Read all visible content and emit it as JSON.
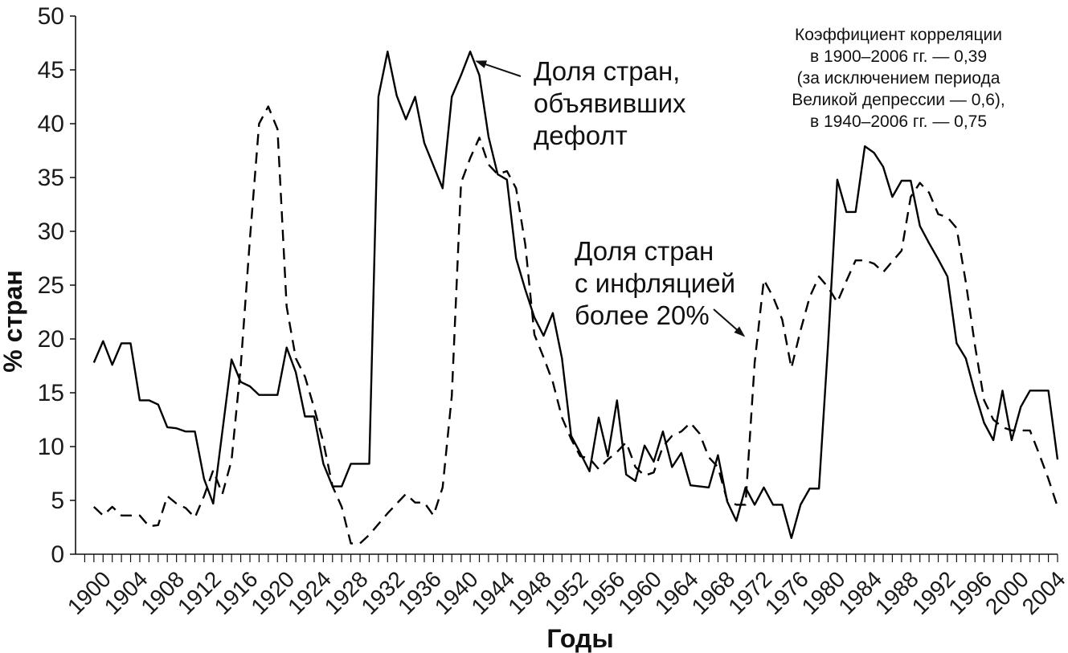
{
  "chart_data": {
    "type": "line",
    "title": "",
    "xlabel": "Годы",
    "ylabel": "% стран",
    "xlim": [
      1898,
      2005
    ],
    "ylim": [
      0,
      50
    ],
    "yticks": [
      0,
      5,
      10,
      15,
      20,
      25,
      30,
      35,
      40,
      45,
      50
    ],
    "xtick_labels": [
      "1900",
      "1904",
      "1908",
      "1912",
      "1916",
      "1920",
      "1924",
      "1928",
      "1932",
      "1936",
      "1940",
      "1944",
      "1948",
      "1952",
      "1956",
      "1960",
      "1964",
      "1968",
      "1972",
      "1976",
      "1980",
      "1984",
      "1988",
      "1992",
      "1996",
      "2000",
      "2004"
    ],
    "grid": false,
    "series": [
      {
        "name": "Доля стран, объявивших дефолт",
        "style": "solid",
        "color": "#000000",
        "x": [
          1900,
          1901,
          1902,
          1903,
          1904,
          1905,
          1906,
          1907,
          1908,
          1909,
          1910,
          1911,
          1912,
          1913,
          1914,
          1915,
          1916,
          1917,
          1918,
          1919,
          1920,
          1921,
          1922,
          1923,
          1924,
          1925,
          1926,
          1927,
          1928,
          1929,
          1930,
          1931,
          1932,
          1933,
          1934,
          1935,
          1936,
          1937,
          1938,
          1939,
          1940,
          1941,
          1942,
          1943,
          1944,
          1945,
          1946,
          1947,
          1948,
          1949,
          1950,
          1951,
          1952,
          1953,
          1954,
          1955,
          1956,
          1957,
          1958,
          1959,
          1960,
          1961,
          1962,
          1963,
          1964,
          1965,
          1966,
          1967,
          1968,
          1969,
          1970,
          1971,
          1972,
          1973,
          1974,
          1975,
          1976,
          1977,
          1978,
          1979,
          1980,
          1981,
          1982,
          1983,
          1984,
          1985,
          1986,
          1987,
          1988,
          1989,
          1990,
          1991,
          1992,
          1993,
          1994,
          1995,
          1996,
          1997,
          1998,
          1999,
          2000,
          2001,
          2002,
          2003,
          2004,
          2005
        ],
        "y": [
          17.8,
          19.8,
          17.6,
          19.6,
          19.6,
          14.3,
          14.3,
          13.9,
          11.8,
          11.7,
          11.4,
          11.4,
          7.0,
          4.7,
          11.4,
          18.1,
          16.0,
          15.6,
          14.8,
          14.8,
          14.8,
          19.2,
          16.9,
          12.8,
          12.8,
          8.4,
          6.3,
          6.3,
          8.4,
          8.4,
          8.4,
          42.5,
          46.7,
          42.6,
          40.4,
          42.5,
          38.2,
          36.1,
          34.0,
          42.5,
          44.5,
          46.7,
          44.5,
          38.8,
          35.3,
          34.8,
          27.5,
          24.6,
          22.0,
          20.3,
          22.4,
          18.2,
          11.0,
          9.4,
          7.7,
          12.7,
          9.1,
          14.3,
          7.4,
          6.8,
          10.1,
          8.6,
          11.4,
          8.1,
          9.4,
          6.4,
          6.3,
          6.2,
          9.2,
          4.9,
          3.1,
          6.2,
          4.6,
          6.2,
          4.6,
          4.6,
          1.5,
          4.6,
          6.1,
          6.1,
          19.6,
          34.8,
          31.8,
          31.8,
          37.9,
          37.3,
          36.0,
          33.2,
          34.7,
          34.7,
          30.5,
          28.9,
          27.4,
          25.8,
          19.6,
          18.2,
          15.0,
          12.2,
          10.6,
          15.2,
          10.6,
          13.7,
          15.2,
          15.2,
          15.2,
          8.8
        ]
      },
      {
        "name": "Доля стран с инфляцией более 20%",
        "style": "dashed",
        "color": "#000000",
        "x": [
          1900,
          1901,
          1902,
          1903,
          1904,
          1905,
          1906,
          1907,
          1908,
          1909,
          1910,
          1911,
          1912,
          1913,
          1914,
          1915,
          1916,
          1917,
          1918,
          1919,
          1920,
          1921,
          1922,
          1923,
          1924,
          1925,
          1926,
          1927,
          1928,
          1929,
          1930,
          1931,
          1932,
          1933,
          1934,
          1935,
          1936,
          1937,
          1938,
          1939,
          1940,
          1941,
          1942,
          1943,
          1944,
          1945,
          1946,
          1947,
          1948,
          1949,
          1950,
          1951,
          1952,
          1953,
          1954,
          1955,
          1956,
          1957,
          1958,
          1959,
          1960,
          1961,
          1962,
          1963,
          1964,
          1965,
          1966,
          1967,
          1968,
          1969,
          1970,
          1971,
          1972,
          1973,
          1974,
          1975,
          1976,
          1977,
          1978,
          1979,
          1980,
          1981,
          1982,
          1983,
          1984,
          1985,
          1986,
          1987,
          1988,
          1989,
          1990,
          1991,
          1992,
          1993,
          1994,
          1995,
          1996,
          1997,
          1998,
          1999,
          2000,
          2001,
          2002,
          2003,
          2004,
          2005
        ],
        "y": [
          4.4,
          3.6,
          4.4,
          3.6,
          3.6,
          3.6,
          2.6,
          2.7,
          5.4,
          4.7,
          4.3,
          3.4,
          5.4,
          7.8,
          5.6,
          8.7,
          17.5,
          29.3,
          40.0,
          41.6,
          39.5,
          23.0,
          18.2,
          16.5,
          13.6,
          10.4,
          6.3,
          4.4,
          1.0,
          1.0,
          1.8,
          2.8,
          3.8,
          4.7,
          5.6,
          4.8,
          4.8,
          3.6,
          6.2,
          14.7,
          34.5,
          36.8,
          38.7,
          36.2,
          35.3,
          35.6,
          34.0,
          28.8,
          20.4,
          18.3,
          16.0,
          12.7,
          10.7,
          9.1,
          8.9,
          7.9,
          8.8,
          9.5,
          10.4,
          8.1,
          7.3,
          7.6,
          10.0,
          11.0,
          11.4,
          12.2,
          11.2,
          9.0,
          8.1,
          5.0,
          4.6,
          4.6,
          17.8,
          25.5,
          23.9,
          21.8,
          17.3,
          20.8,
          23.9,
          25.8,
          24.8,
          23.4,
          25.4,
          27.3,
          27.3,
          27.0,
          26.2,
          27.2,
          28.2,
          33.2,
          34.5,
          33.6,
          31.6,
          31.3,
          30.3,
          25.3,
          19.4,
          14.3,
          12.5,
          11.8,
          11.5,
          11.5,
          11.5,
          9.3,
          7.0,
          4.4
        ]
      }
    ],
    "annotations": [
      {
        "name": "default-label",
        "lines": [
          "Доля стран,",
          "объявивших",
          "дефолт"
        ],
        "arrow_to": [
          1941,
          45.5
        ]
      },
      {
        "name": "inflation-label",
        "lines": [
          "Доля стран",
          "с инфляцией",
          "более 20%"
        ],
        "arrow_to": [
          1971,
          18.8
        ]
      },
      {
        "name": "correlation-note",
        "lines": [
          "Коэффициент корреляции",
          "в 1900–2006 гг. — 0,39",
          "(за исключением периода",
          "Великой депрессии — 0,6),",
          "в 1940–2006 гг. — 0,75"
        ]
      }
    ]
  }
}
